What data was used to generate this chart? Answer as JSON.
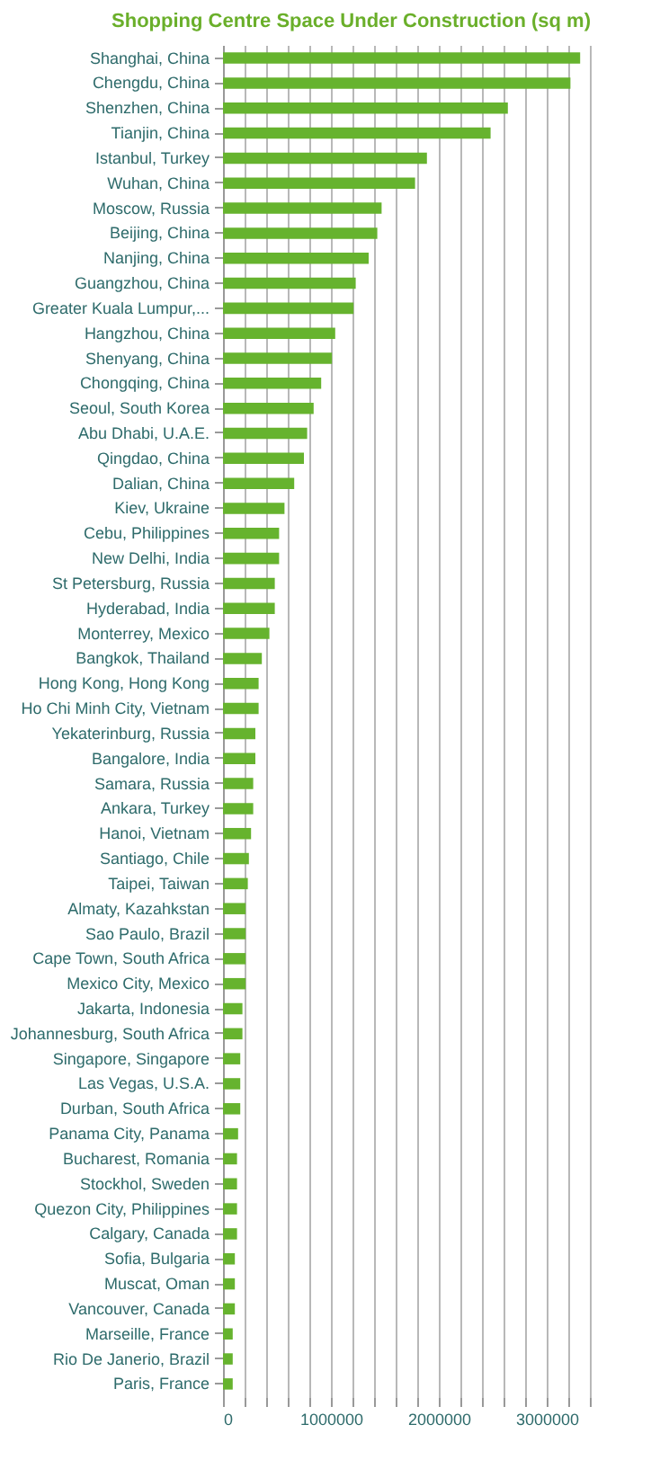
{
  "chart_data": {
    "type": "bar",
    "orientation": "horizontal",
    "title": "Shopping Centre Space Under Construction (sq m)",
    "color": "#66b32e",
    "grid": "x",
    "categories": [
      "Shanghai, China",
      "Chengdu, China",
      "Shenzhen, China",
      "Tianjin, China",
      "Istanbul, Turkey",
      "Wuhan, China",
      "Moscow, Russia",
      "Beijing, China",
      "Nanjing, China",
      "Guangzhou, China",
      "Greater Kuala Lumpur,...",
      "Hangzhou, China",
      "Shenyang, China",
      "Chongqing, China",
      "Seoul, South Korea",
      "Abu Dhabi, U.A.E.",
      "Qingdao, China",
      "Dalian, China",
      "Kiev, Ukraine",
      "Cebu, Philippines",
      "New Delhi, India",
      "St Petersburg, Russia",
      "Hyderabad, India",
      "Monterrey, Mexico",
      "Bangkok, Thailand",
      "Hong Kong, Hong Kong",
      "Ho Chi Minh City, Vietnam",
      "Yekaterinburg, Russia",
      "Bangalore, India",
      "Samara, Russia",
      "Ankara, Turkey",
      "Hanoi, Vietnam",
      "Santiago, Chile",
      "Taipei, Taiwan",
      "Almaty, Kazahkstan",
      "Sao Paulo, Brazil",
      "Cape Town, South Africa",
      "Mexico City, Mexico",
      "Jakarta, Indonesia",
      "Johannesburg, South Africa",
      "Singapore, Singapore",
      "Las Vegas, U.S.A.",
      "Durban, South Africa",
      "Panama City, Panama",
      "Bucharest, Romania",
      "Stockhol, Sweden",
      "Quezon City, Philippines",
      "Calgary, Canada",
      "Sofia, Bulgaria",
      "Muscat, Oman",
      "Vancouver, Canada",
      "Marseille, France",
      "Rio De Janerio, Brazil",
      "Paris, France"
    ],
    "values": [
      3310000,
      3220000,
      2640000,
      2480000,
      1890000,
      1780000,
      1470000,
      1430000,
      1350000,
      1230000,
      1210000,
      1040000,
      1010000,
      910000,
      840000,
      780000,
      750000,
      660000,
      570000,
      520000,
      520000,
      480000,
      480000,
      430000,
      360000,
      330000,
      330000,
      300000,
      300000,
      280000,
      280000,
      260000,
      240000,
      230000,
      210000,
      210000,
      210000,
      210000,
      180000,
      180000,
      160000,
      160000,
      160000,
      140000,
      130000,
      130000,
      130000,
      130000,
      110000,
      110000,
      110000,
      90000,
      90000,
      90000
    ],
    "xlim": [
      0,
      3400000
    ],
    "xticks": [
      0,
      {
        "value": 200000,
        "label": null
      },
      {
        "value": 400000,
        "label": null
      },
      {
        "value": 600000,
        "label": null
      },
      {
        "value": 800000,
        "label": null
      },
      1000000,
      {
        "value": 1200000,
        "label": null
      },
      {
        "value": 1400000,
        "label": null
      },
      {
        "value": 1600000,
        "label": null
      },
      {
        "value": 1800000,
        "label": null
      },
      2000000,
      {
        "value": 2200000,
        "label": null
      },
      {
        "value": 2400000,
        "label": null
      },
      {
        "value": 2600000,
        "label": null
      },
      {
        "value": 2800000,
        "label": null
      },
      3000000,
      {
        "value": 3200000,
        "label": null
      },
      {
        "value": 3400000,
        "label": null
      }
    ]
  }
}
